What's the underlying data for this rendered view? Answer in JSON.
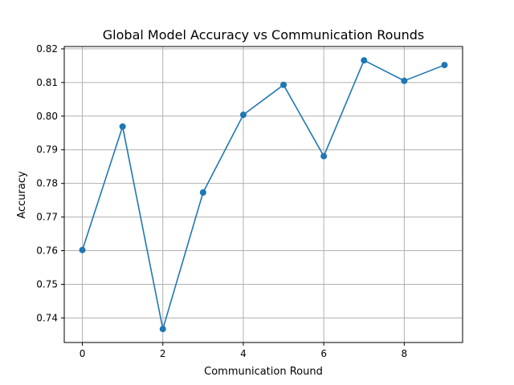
{
  "chart_data": {
    "type": "line",
    "title": "Global Model Accuracy vs Communication Rounds",
    "xlabel": "Communication Round",
    "ylabel": "Accuracy",
    "x": [
      0,
      1,
      2,
      3,
      4,
      5,
      6,
      7,
      8,
      9
    ],
    "series": [
      {
        "values": [
          0.7602,
          0.7969,
          0.7367,
          0.7773,
          0.8004,
          0.8093,
          0.7881,
          0.8166,
          0.8105,
          0.8152
        ],
        "color": "#1f77b4",
        "marker": "circle"
      }
    ],
    "xlim": [
      -0.45,
      9.45
    ],
    "ylim": [
      0.7327,
      0.8207
    ],
    "xticks": [
      0,
      2,
      4,
      6,
      8
    ],
    "yticks": [
      0.74,
      0.75,
      0.76,
      0.77,
      0.78,
      0.79,
      0.8,
      0.81,
      0.82
    ],
    "ytick_labels": [
      "0.74",
      "0.75",
      "0.76",
      "0.77",
      "0.78",
      "0.79",
      "0.80",
      "0.81",
      "0.82"
    ],
    "grid": true,
    "legend": "none"
  }
}
